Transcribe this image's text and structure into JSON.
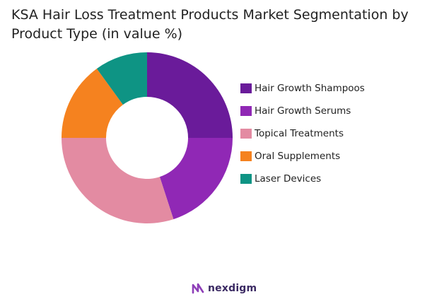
{
  "chart_data": {
    "type": "pie",
    "title": "KSA Hair Loss Treatment Products Market Segmentation by Product Type (in value %)",
    "categories": [
      "Hair Growth Shampoos",
      "Hair Growth Serums",
      "Topical Treatments",
      "Oral Supplements",
      "Laser Devices"
    ],
    "values": [
      25,
      20,
      30,
      15,
      10
    ],
    "colors": [
      "#6a1b9a",
      "#9028b5",
      "#e38ba2",
      "#f5821f",
      "#0e9484"
    ],
    "donut": true,
    "legend_position": "right"
  },
  "branding": {
    "name": "nexdigm",
    "icon": "nexdigm-logo-icon",
    "color": "#3b2a63"
  }
}
